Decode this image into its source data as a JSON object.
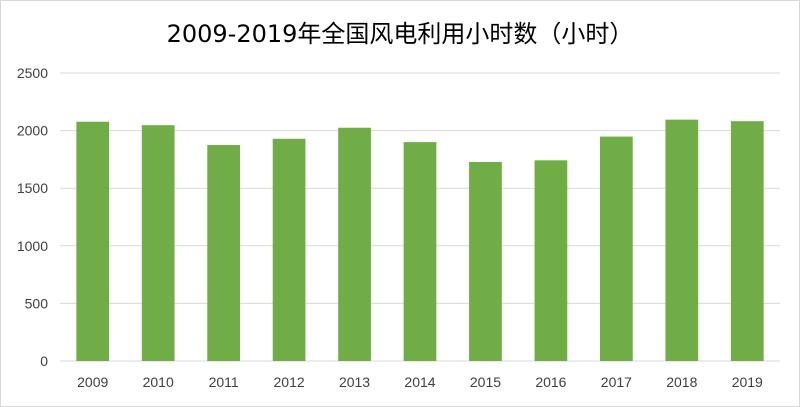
{
  "chart_data": {
    "type": "bar",
    "title": "2009-2019年全国风电利用小时数（小时）",
    "xlabel": "",
    "ylabel": "",
    "categories": [
      "2009",
      "2010",
      "2011",
      "2012",
      "2013",
      "2014",
      "2015",
      "2016",
      "2017",
      "2018",
      "2019"
    ],
    "values": [
      2077,
      2047,
      1875,
      1929,
      2025,
      1900,
      1728,
      1742,
      1948,
      2095,
      2082
    ],
    "ylim": [
      0,
      2500
    ],
    "yticks": [
      0,
      500,
      1000,
      1500,
      2000,
      2500
    ],
    "grid": true,
    "legend": "none",
    "bar_color": "#70ad47",
    "grid_color": "#d9d9d9"
  }
}
